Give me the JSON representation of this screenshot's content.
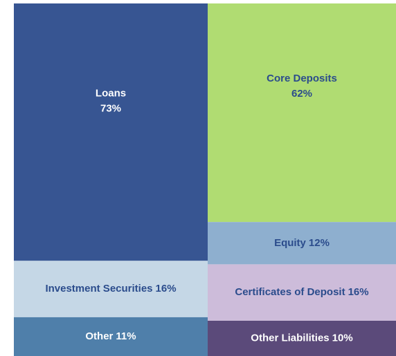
{
  "chart_data": {
    "type": "stacked_column",
    "ylim": [
      0,
      100
    ],
    "columns": [
      {
        "segments": [
          {
            "name": "Loans",
            "value": 73,
            "value_label": "73%",
            "color": "#375592",
            "label_color": "#ffffff"
          },
          {
            "name": "Investment Securities",
            "value": 16,
            "value_label": "16%",
            "color": "#c5d7e6",
            "label_color": "#2b4c8c"
          },
          {
            "name": "Other",
            "value": 11,
            "value_label": "11%",
            "color": "#4f7faa",
            "label_color": "#ffffff"
          }
        ]
      },
      {
        "segments": [
          {
            "name": "Core Deposits",
            "value": 62,
            "value_label": "62%",
            "color": "#b0dc72",
            "label_color": "#2b4c8c"
          },
          {
            "name": "Equity",
            "value": 12,
            "value_label": "12%",
            "color": "#8eafcf",
            "label_color": "#2b4c8c"
          },
          {
            "name": "Certificates of Deposit",
            "value": 16,
            "value_label": "16%",
            "color": "#cdbcda",
            "label_color": "#2b4c8c"
          },
          {
            "name": "Other Liabilities",
            "value": 10,
            "value_label": "10%",
            "color": "#5b4a7a",
            "label_color": "#ffffff"
          }
        ]
      }
    ]
  }
}
